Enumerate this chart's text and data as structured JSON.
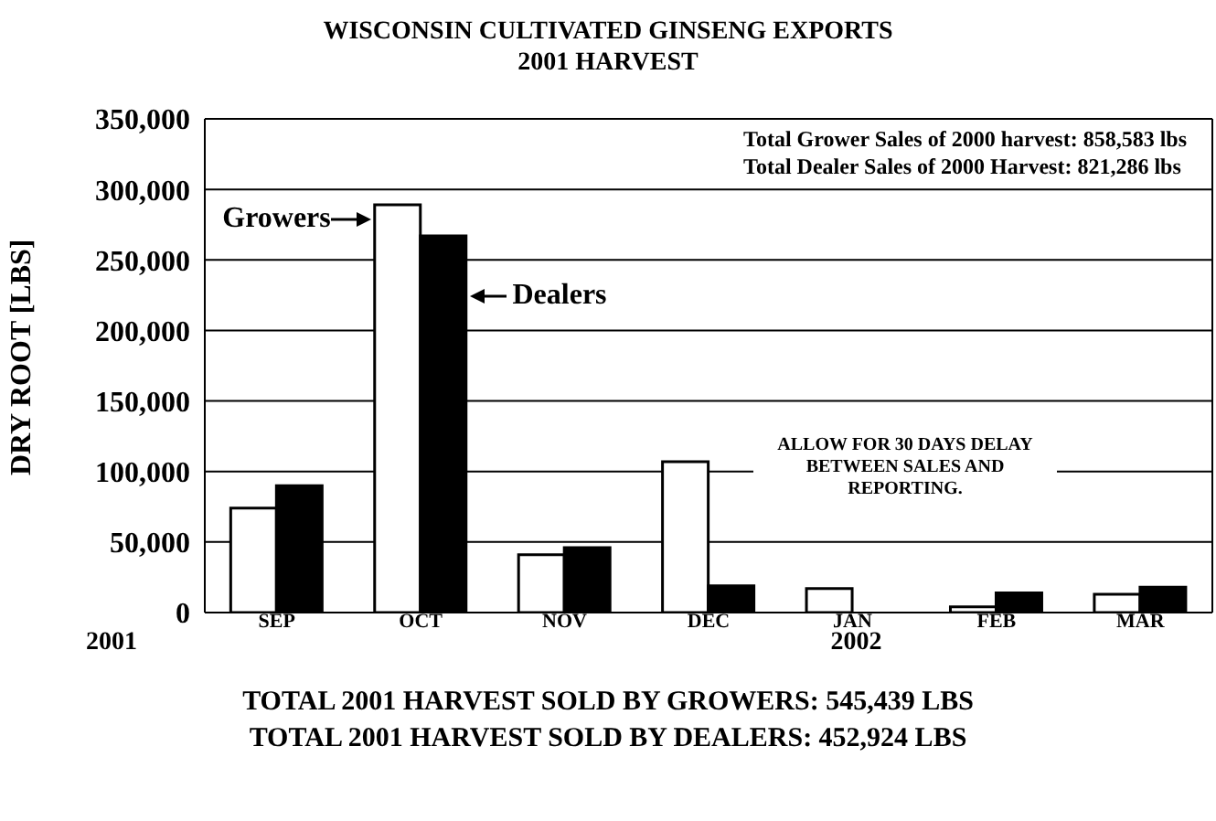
{
  "chart_data": {
    "type": "bar",
    "title": "WISCONSIN CULTIVATED GINSENG EXPORTS",
    "subtitle": "2001 HARVEST",
    "ylabel": "DRY ROOT [LBS]",
    "categories": [
      "SEP",
      "OCT",
      "NOV",
      "DEC",
      "JAN",
      "FEB",
      "MAR"
    ],
    "series": [
      {
        "name": "Growers",
        "color": "#ffffff",
        "values": [
          74000,
          289000,
          41000,
          107000,
          17000,
          4000,
          13000
        ]
      },
      {
        "name": "Dealers",
        "color": "#000000",
        "values": [
          90000,
          267000,
          46000,
          19000,
          0,
          14000,
          18000
        ]
      }
    ],
    "ylim": [
      0,
      350000
    ],
    "yticks": [
      {
        "value": 0,
        "label": "0"
      },
      {
        "value": 50000,
        "label": "50,000"
      },
      {
        "value": 100000,
        "label": "100,000"
      },
      {
        "value": 150000,
        "label": "150,000"
      },
      {
        "value": 200000,
        "label": "200,000"
      },
      {
        "value": 250000,
        "label": "250,000"
      },
      {
        "value": 300000,
        "label": "300,000"
      },
      {
        "value": 350000,
        "label": "350,000"
      }
    ],
    "grid": "y",
    "annotations": [
      "Total Grower Sales of 2000 harvest: 858,583 lbs",
      "Total Dealer Sales of 2000 Harvest: 821,286 lbs",
      "ALLOW FOR 30 DAYS DELAY BETWEEN SALES AND REPORTING.",
      "2001",
      "2002",
      "TOTAL 2001 HARVEST SOLD BY GROWERS:  545,439 LBS",
      "TOTAL 2001 HARVEST SOLD BY DEALERS:  452,924 LBS"
    ]
  }
}
